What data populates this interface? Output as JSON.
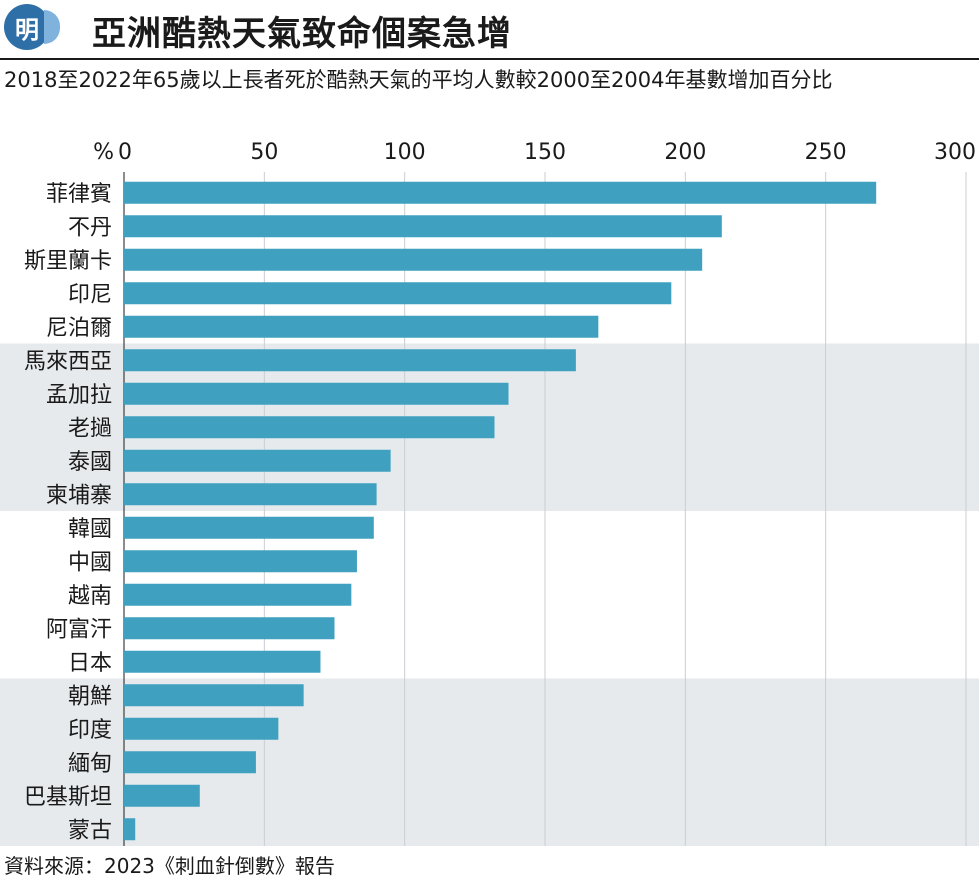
{
  "header": {
    "logo_text": "明",
    "title": "亞洲酷熱天氣致命個案急增",
    "subtitle": "2018至2022年65歲以上長者死於酷熱天氣的平均人數較2000至2004年基數增加百分比"
  },
  "chart_data": {
    "type": "bar",
    "orientation": "horizontal",
    "title": "亞洲酷熱天氣致命個案急增",
    "xlabel": "%",
    "ylabel": "",
    "xlim": [
      0,
      300
    ],
    "xticks": [
      0,
      50,
      100,
      150,
      200,
      250,
      300
    ],
    "categories": [
      "菲律賓",
      "不丹",
      "斯里蘭卡",
      "印尼",
      "尼泊爾",
      "馬來西亞",
      "孟加拉",
      "老撾",
      "泰國",
      "柬埔寨",
      "韓國",
      "中國",
      "越南",
      "阿富汗",
      "日本",
      "朝鮮",
      "印度",
      "緬甸",
      "巴基斯坦",
      "蒙古"
    ],
    "values": [
      268,
      213,
      206,
      195,
      169,
      161,
      137,
      132,
      95,
      90,
      89,
      83,
      81,
      75,
      70,
      64,
      55,
      47,
      27,
      4
    ],
    "grid": true,
    "legend": "none",
    "bar_color": "#3fa0c0",
    "band_color": "#e6eaed"
  },
  "footer": {
    "source": "資料來源：2023《刺血針倒數》報告"
  }
}
